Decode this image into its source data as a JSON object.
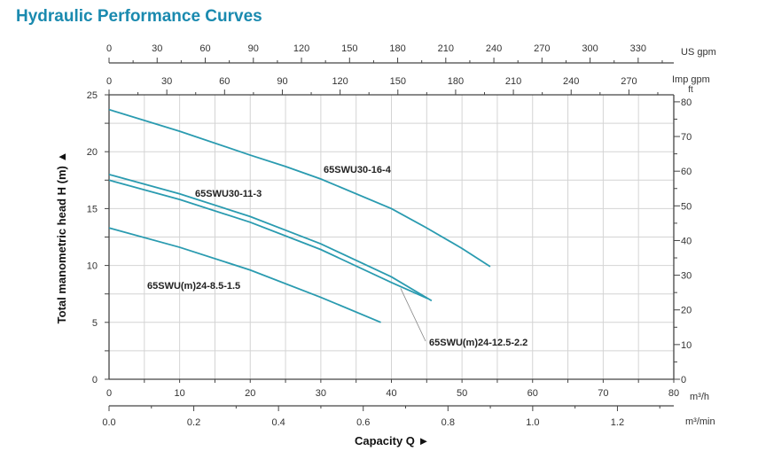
{
  "title": "Hydraulic Performance Curves",
  "colors": {
    "title": "#1a8aaf",
    "curve": "#2a9bb0",
    "grid": "#d4d4d4",
    "axis": "#444444"
  },
  "chart_data": {
    "type": "line",
    "title": "Hydraulic Performance Curves",
    "xlabel": "Capacity Q",
    "ylabel": "Total manometric head H (m)",
    "xlim": [
      0,
      80
    ],
    "ylim": [
      0,
      25
    ],
    "grid": true,
    "x_unit": "m³/h",
    "x_ticks": [
      0,
      10,
      20,
      30,
      40,
      50,
      60,
      70,
      80
    ],
    "y_ticks": [
      0,
      5,
      10,
      15,
      20,
      25
    ],
    "secondary_axes": {
      "us_gpm": {
        "unit": "US gpm",
        "ticks": [
          0,
          30,
          60,
          90,
          120,
          150,
          180,
          210,
          240,
          270,
          300,
          330
        ],
        "max": 352.2
      },
      "imp_gpm": {
        "unit": "Imp gpm",
        "ticks": [
          0,
          30,
          60,
          90,
          120,
          150,
          180,
          210,
          240,
          270
        ],
        "max": 293.3
      },
      "ft": {
        "unit": "ft",
        "ticks": [
          0,
          10,
          20,
          30,
          40,
          50,
          60,
          70,
          80
        ],
        "max": 82.02
      },
      "m3_min": {
        "unit": "m³/min",
        "ticks": [
          "0.0",
          "0.2",
          "0.4",
          "0.6",
          "0.8",
          "1.0",
          "1.2"
        ],
        "max": 1.333
      }
    },
    "series": [
      {
        "name": "65SWU30-16-4",
        "x": [
          0,
          10,
          20,
          25,
          30,
          40,
          45,
          50,
          54
        ],
        "y": [
          23.7,
          21.8,
          19.7,
          18.7,
          17.6,
          15.0,
          13.3,
          11.5,
          9.9
        ]
      },
      {
        "name": "65SWU30-11-3",
        "x": [
          0,
          10,
          20,
          30,
          40,
          45.7
        ],
        "y": [
          18.0,
          16.3,
          14.3,
          11.9,
          9.0,
          6.9
        ]
      },
      {
        "name": "65SWU(m)24-12.5-2.2",
        "x": [
          0,
          10,
          20,
          30,
          40,
          45.1
        ],
        "y": [
          17.5,
          15.8,
          13.8,
          11.4,
          8.5,
          7.1
        ]
      },
      {
        "name": "65SWU(m)24-8.5-1.5",
        "x": [
          0,
          10,
          20,
          30,
          38.5
        ],
        "y": [
          13.3,
          11.6,
          9.6,
          7.2,
          5.0
        ]
      }
    ]
  }
}
